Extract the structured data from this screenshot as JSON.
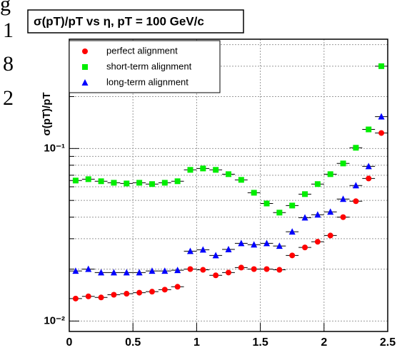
{
  "cropped_text": [
    "g",
    "1",
    "8",
    "2"
  ],
  "chart_data": {
    "type": "scatter",
    "title": "σ(pT)/pT vs η, pT = 100 GeV/c",
    "y_label": "σ(pT)/pT",
    "x": [
      0.05,
      0.15,
      0.25,
      0.35,
      0.45,
      0.55,
      0.65,
      0.75,
      0.85,
      0.95,
      1.05,
      1.15,
      1.25,
      1.35,
      1.45,
      1.55,
      1.65,
      1.75,
      1.85,
      1.95,
      2.05,
      2.15,
      2.25,
      2.35,
      2.45
    ],
    "xerr": 0.05,
    "series": [
      {
        "name": "perfect alignment",
        "color": "#ff0000",
        "marker": "circle",
        "values": [
          0.0135,
          0.0139,
          0.0137,
          0.0142,
          0.0144,
          0.0146,
          0.0148,
          0.0152,
          0.0158,
          0.02,
          0.0198,
          0.0184,
          0.0191,
          0.0204,
          0.02,
          0.02,
          0.0198,
          0.024,
          0.0267,
          0.0288,
          0.0313,
          0.04,
          0.0495,
          0.067,
          0.123
        ]
      },
      {
        "name": "short-term alignment",
        "color": "#00ee00",
        "marker": "square",
        "values": [
          0.0652,
          0.0664,
          0.0646,
          0.0633,
          0.0627,
          0.0633,
          0.0622,
          0.0633,
          0.0646,
          0.0752,
          0.0766,
          0.0752,
          0.071,
          0.0658,
          0.0554,
          0.048,
          0.0425,
          0.0467,
          0.0544,
          0.0622,
          0.071,
          0.0819,
          0.101,
          0.129,
          0.3
        ]
      },
      {
        "name": "long-term  alignment",
        "color": "#0000ff",
        "marker": "triangle",
        "values": [
          0.0195,
          0.02,
          0.0191,
          0.0191,
          0.0191,
          0.0191,
          0.0195,
          0.0195,
          0.0197,
          0.0254,
          0.0259,
          0.024,
          0.026,
          0.0282,
          0.0277,
          0.0282,
          0.0272,
          0.0329,
          0.0397,
          0.0413,
          0.0429,
          0.0509,
          0.061,
          0.0788,
          0.153
        ]
      }
    ],
    "xlim": [
      0,
      2.5
    ],
    "xticks": [
      0,
      0.5,
      1,
      1.5,
      2,
      2.5
    ],
    "ylim": [
      0.0087,
      0.43
    ],
    "log_y": true,
    "yticks": [
      {
        "value": 0.01,
        "label": "10⁻²"
      },
      {
        "value": 0.1,
        "label": "10⁻¹"
      }
    ],
    "yminor": [
      0.02,
      0.03,
      0.04,
      0.05,
      0.06,
      0.07,
      0.08,
      0.09,
      0.2,
      0.3,
      0.4
    ],
    "grid": true,
    "legend": "top-left"
  }
}
